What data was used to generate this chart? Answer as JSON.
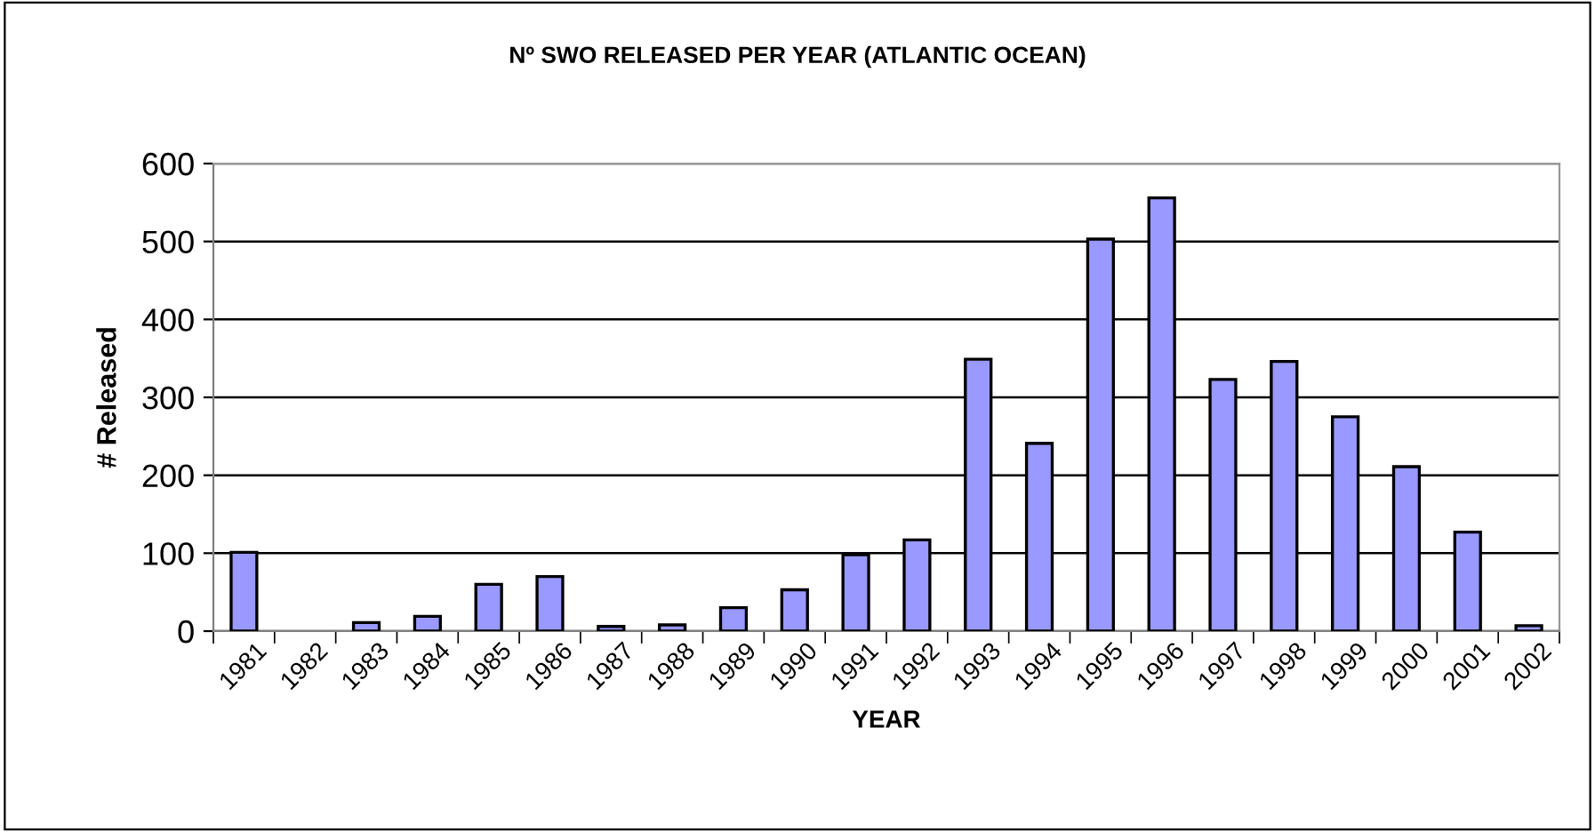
{
  "chart_data": {
    "type": "bar",
    "title": "Nº SWO RELEASED PER YEAR (ATLANTIC OCEAN)",
    "xlabel": "YEAR",
    "ylabel": "# Released",
    "categories": [
      "1981",
      "1982",
      "1983",
      "1984",
      "1985",
      "1986",
      "1987",
      "1988",
      "1989",
      "1990",
      "1991",
      "1992",
      "1993",
      "1994",
      "1995",
      "1996",
      "1997",
      "1998",
      "1999",
      "2000",
      "2001",
      "2002"
    ],
    "values": [
      101,
      0,
      11,
      19,
      60,
      70,
      6,
      8,
      30,
      53,
      98,
      117,
      349,
      241,
      503,
      556,
      323,
      346,
      275,
      211,
      127,
      7
    ],
    "color": "#9999ff",
    "ylim": [
      0,
      600
    ],
    "yticks": [
      0,
      100,
      200,
      300,
      400,
      500,
      600
    ],
    "grid": "y",
    "legend": false
  }
}
